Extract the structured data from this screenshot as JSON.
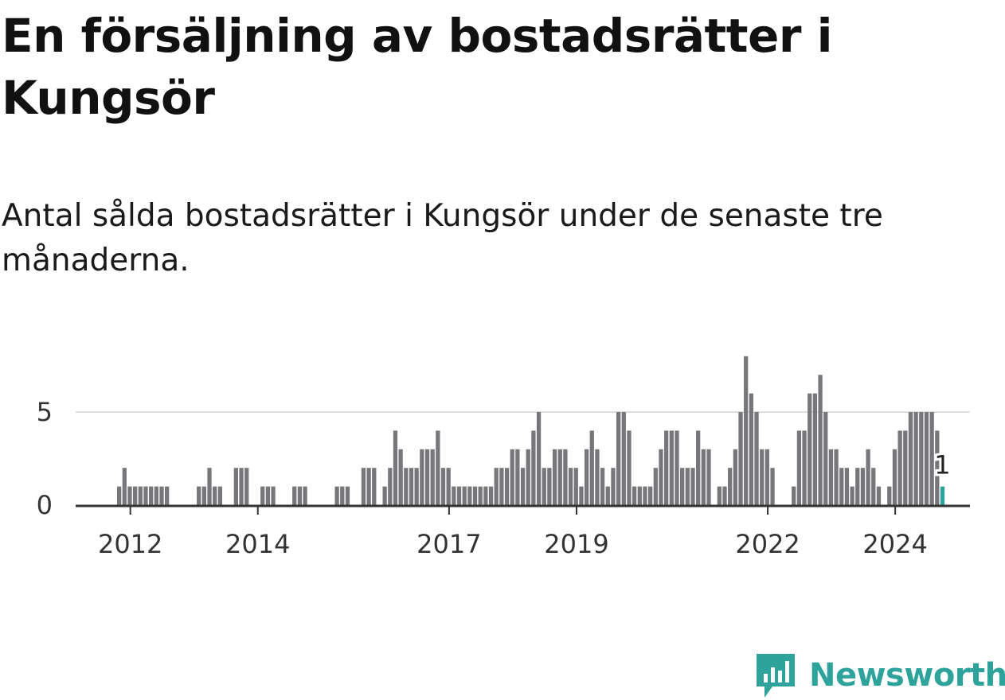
{
  "title": "En försäljning av bostadsrätter i Kungsör",
  "subtitle": "Antal sålda bostadsrätter i Kungsör under de senaste tre månaderna.",
  "brand": {
    "name": "Newsworthy",
    "color": "#2ea39c",
    "icon": "newsworthy-bar-chart-icon"
  },
  "chart_data": {
    "type": "bar",
    "title": "",
    "xlabel": "",
    "ylabel": "",
    "x_start": "2011-11",
    "frequency": "monthly",
    "ylim": [
      0,
      8
    ],
    "y_ticks": [
      0,
      5
    ],
    "x_ticks": [
      "2012",
      "2014",
      "2017",
      "2019",
      "2022",
      "2024"
    ],
    "grid": true,
    "bar_color": "#77767b",
    "highlight_color": "#2ea39c",
    "highlight_label": "1",
    "values": [
      1,
      2,
      1,
      1,
      1,
      1,
      1,
      1,
      1,
      1,
      0,
      0,
      0,
      0,
      0,
      1,
      1,
      2,
      1,
      1,
      0,
      0,
      2,
      2,
      2,
      0,
      0,
      1,
      1,
      1,
      0,
      0,
      0,
      1,
      1,
      1,
      0,
      0,
      0,
      0,
      0,
      1,
      1,
      1,
      0,
      0,
      2,
      2,
      2,
      0,
      1,
      2,
      4,
      3,
      2,
      2,
      2,
      3,
      3,
      3,
      4,
      2,
      2,
      1,
      1,
      1,
      1,
      1,
      1,
      1,
      1,
      2,
      2,
      2,
      3,
      3,
      2,
      3,
      4,
      5,
      2,
      2,
      3,
      3,
      3,
      2,
      2,
      1,
      3,
      4,
      3,
      2,
      1,
      2,
      5,
      5,
      4,
      1,
      1,
      1,
      1,
      2,
      3,
      4,
      4,
      4,
      2,
      2,
      2,
      4,
      3,
      3,
      0,
      1,
      1,
      2,
      3,
      5,
      8,
      6,
      5,
      3,
      3,
      2,
      0,
      0,
      0,
      1,
      4,
      4,
      6,
      6,
      7,
      5,
      3,
      3,
      2,
      2,
      1,
      2,
      2,
      3,
      2,
      1,
      0,
      1,
      3,
      4,
      4,
      5,
      5,
      5,
      5,
      5,
      4,
      1
    ]
  }
}
